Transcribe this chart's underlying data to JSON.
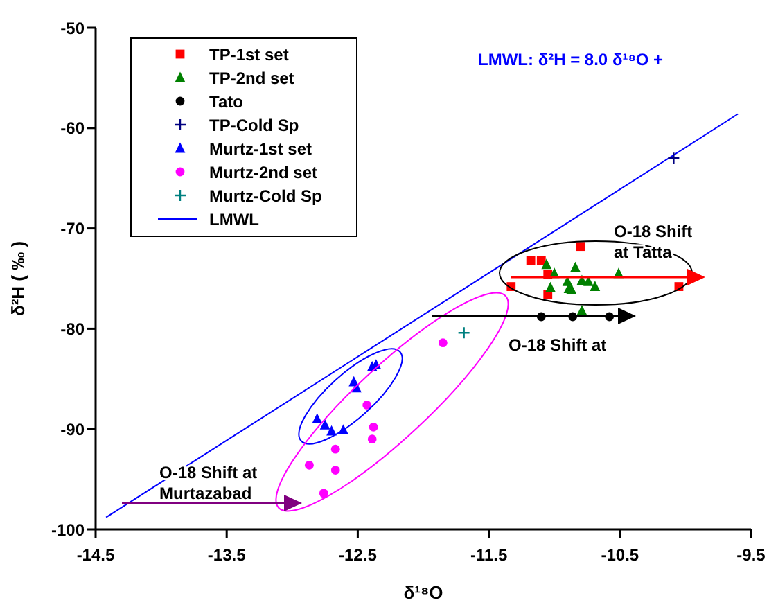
{
  "chart_data": {
    "type": "scatter",
    "xlabel": "δ¹⁸O",
    "ylabel": "δ²H ( ‰ )",
    "xlim": [
      -14.5,
      -9.5
    ],
    "xticks": [
      -14.5,
      -13.5,
      -12.5,
      -11.5,
      -10.5,
      -9.5
    ],
    "ylim": [
      -100,
      -50
    ],
    "yticks": [
      -100,
      -90,
      -80,
      -70,
      -60,
      -50
    ],
    "grid": false,
    "legend": "top left",
    "annotations": [
      "LMWL: δ²H = 8.0 δ¹⁸O +",
      "O-18 Shift\nat Tatta",
      "O-18 Shift at",
      "O-18 Shift at\nMurtazabad"
    ],
    "series": [
      {
        "name": "TP-1st set",
        "color": "#ff0000",
        "marker": "square",
        "x": [
          -10.8,
          -11.18,
          -11.1,
          -11.05,
          -11.33,
          -11.05,
          -10.05
        ],
        "values": [
          -71.8,
          -73.2,
          -73.2,
          -74.6,
          -75.8,
          -76.6,
          -75.8
        ]
      },
      {
        "name": "TP-2nd set",
        "color": "#008000",
        "marker": "triangle",
        "x": [
          -11.06,
          -11.0,
          -10.84,
          -10.51,
          -10.9,
          -10.79,
          -10.74,
          -10.69,
          -11.03,
          -10.89,
          -10.87,
          -10.79
        ],
        "values": [
          -73.6,
          -74.5,
          -73.9,
          -74.5,
          -75.3,
          -75.2,
          -75.3,
          -75.8,
          -75.9,
          -76.0,
          -76.1,
          -78.2
        ]
      },
      {
        "name": "Tato",
        "color": "#000000",
        "marker": "circle",
        "x": [
          -11.1,
          -10.86,
          -10.58
        ],
        "values": [
          -78.8,
          -78.8,
          -78.8
        ]
      },
      {
        "name": "TP-Cold Sp",
        "color": "#000080",
        "marker": "cross",
        "x": [
          -10.09
        ],
        "values": [
          -63.0
        ]
      },
      {
        "name": "Murtz-1st set",
        "color": "#0000ff",
        "marker": "triangle",
        "x": [
          -12.39,
          -12.36,
          -12.53,
          -12.51,
          -12.81,
          -12.75,
          -12.7,
          -12.61
        ],
        "values": [
          -83.8,
          -83.6,
          -85.3,
          -85.9,
          -89.0,
          -89.6,
          -90.2,
          -90.1
        ]
      },
      {
        "name": "Murtz-2nd set",
        "color": "#ff00ff",
        "marker": "circle",
        "x": [
          -11.85,
          -12.43,
          -12.38,
          -12.39,
          -12.67,
          -12.87,
          -12.67,
          -12.76
        ],
        "values": [
          -81.4,
          -87.6,
          -89.8,
          -91.0,
          -92.0,
          -93.6,
          -94.1,
          -96.4
        ]
      },
      {
        "name": "Murtz-Cold Sp",
        "color": "#008080",
        "marker": "cross",
        "x": [
          -11.69
        ],
        "values": [
          -80.4
        ]
      },
      {
        "name": "LMWL",
        "type": "line",
        "color": "#0000ff",
        "marker": "none",
        "x": [
          -14.42,
          -9.6
        ],
        "values": [
          -98.8,
          -58.6
        ]
      }
    ]
  }
}
